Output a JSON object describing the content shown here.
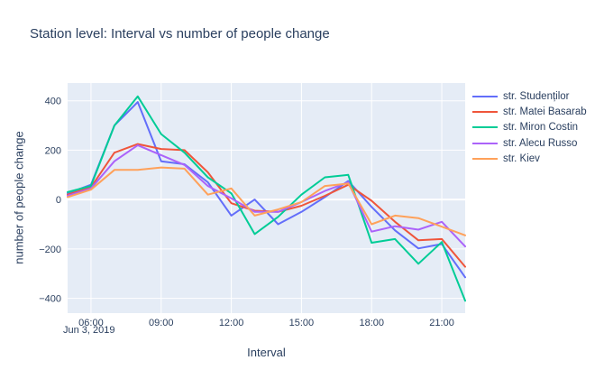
{
  "colors": {
    "paper_background": "#ffffff",
    "plot_background": "#e5ecf6",
    "gridline": "#ffffff",
    "text": "#2a3f5f"
  },
  "chart_data": {
    "type": "line",
    "title": "Station level: Interval vs number of people change",
    "xlabel": "Interval",
    "ylabel": "number of people change",
    "x_date_label": "Jun 3, 2019",
    "grid": true,
    "legend_position": "right",
    "x": [
      "05:00",
      "06:00",
      "07:00",
      "08:00",
      "09:00",
      "10:00",
      "11:00",
      "12:00",
      "13:00",
      "14:00",
      "15:00",
      "16:00",
      "17:00",
      "18:00",
      "19:00",
      "20:00",
      "21:00",
      "22:00"
    ],
    "x_ticks": [
      "06:00",
      "09:00",
      "12:00",
      "15:00",
      "18:00",
      "21:00"
    ],
    "y_ticks": [
      {
        "value": 400,
        "label": "400"
      },
      {
        "value": 200,
        "label": "200"
      },
      {
        "value": 0,
        "label": "0"
      },
      {
        "value": -200,
        "label": "−200"
      },
      {
        "value": -400,
        "label": "−400"
      }
    ],
    "ylim": [
      -460,
      472
    ],
    "series": [
      {
        "name": "str. Studenților",
        "color": "#636efa",
        "values": [
          25,
          60,
          300,
          395,
          155,
          143,
          70,
          -65,
          0,
          -100,
          -50,
          10,
          75,
          -30,
          -125,
          -198,
          -180,
          -315
        ]
      },
      {
        "name": "str. Matei Basarab",
        "color": "#ef553b",
        "values": [
          20,
          50,
          190,
          225,
          205,
          200,
          110,
          -15,
          -45,
          -50,
          -25,
          15,
          60,
          -5,
          -90,
          -165,
          -160,
          -272
        ]
      },
      {
        "name": "str. Miron Costin",
        "color": "#00cc96",
        "values": [
          30,
          55,
          300,
          418,
          265,
          190,
          90,
          25,
          -140,
          -70,
          20,
          90,
          100,
          -175,
          -160,
          -260,
          -172,
          -410
        ]
      },
      {
        "name": "str. Alecu Russo",
        "color": "#ab63fa",
        "values": [
          15,
          45,
          155,
          220,
          180,
          140,
          55,
          5,
          -50,
          -50,
          -10,
          35,
          70,
          -130,
          -108,
          -122,
          -90,
          -190
        ]
      },
      {
        "name": "str. Kiev",
        "color": "#ffa15a",
        "values": [
          10,
          40,
          120,
          120,
          130,
          125,
          20,
          45,
          -65,
          -40,
          -10,
          55,
          65,
          -100,
          -65,
          -75,
          -110,
          -145
        ]
      }
    ]
  }
}
